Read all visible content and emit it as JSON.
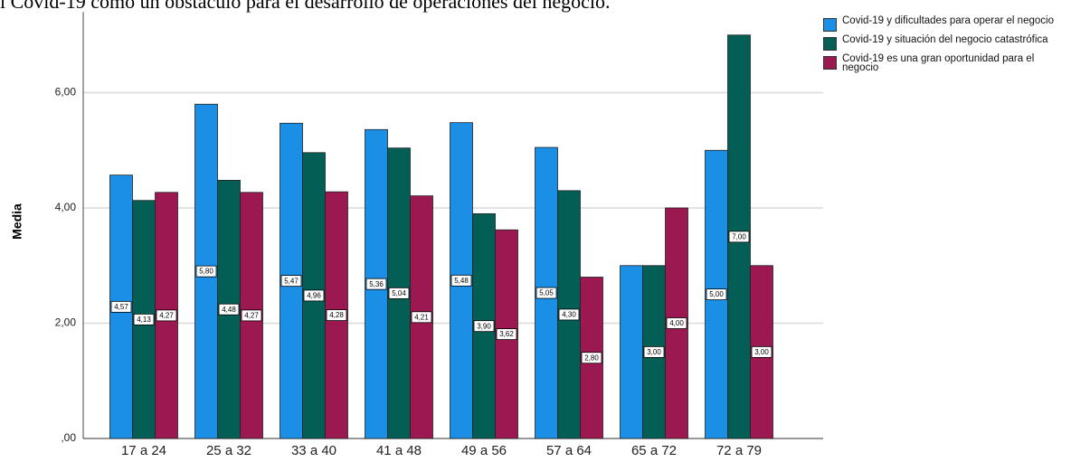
{
  "chart_data": {
    "type": "bar",
    "title": "l Covid-19 como un obstáculo para el desarrollo de operaciones del negocio.",
    "ylabel": "Media",
    "categories": [
      "17 a 24",
      "25 a 32",
      "33 a 40",
      "41 a 48",
      "49 a 56",
      "57 a 64",
      "65 a 72",
      "72 a 79"
    ],
    "series": [
      {
        "name": "Covid-19 y dificultades para operar el negocio",
        "color": "#1b8fe6",
        "values": [
          4.57,
          5.8,
          5.47,
          5.36,
          5.48,
          5.05,
          3.0,
          5.0
        ],
        "value_labels": [
          "4,57",
          "5,80",
          "5,47",
          "5,36",
          "5,48",
          "5,05",
          null,
          "5,00"
        ]
      },
      {
        "name": "Covid-19 y situación del negocio catastrófica",
        "color": "#035e55",
        "values": [
          4.13,
          4.48,
          4.96,
          5.04,
          3.9,
          4.3,
          3.0,
          7.0
        ],
        "value_labels": [
          "4,13",
          "4,48",
          "4,96",
          "5,04",
          "3,90",
          "4,30",
          "3,00",
          "7,00"
        ]
      },
      {
        "name": "Covid-19 es una gran oportunidad para el negocio",
        "color": "#9c1850",
        "values": [
          4.27,
          4.27,
          4.28,
          4.21,
          3.62,
          2.8,
          4.0,
          3.0
        ],
        "value_labels": [
          "4,27",
          "4,27",
          "4,28",
          "4,21",
          "3,62",
          "2,80",
          "4,00",
          "3,00"
        ]
      }
    ],
    "ylim": [
      0,
      7.4
    ],
    "yticks": [
      {
        "value": 0,
        "label": ",00"
      },
      {
        "value": 2,
        "label": "2,00"
      },
      {
        "value": 4,
        "label": "4,00"
      },
      {
        "value": 6,
        "label": "6,00"
      }
    ],
    "grid": true
  }
}
